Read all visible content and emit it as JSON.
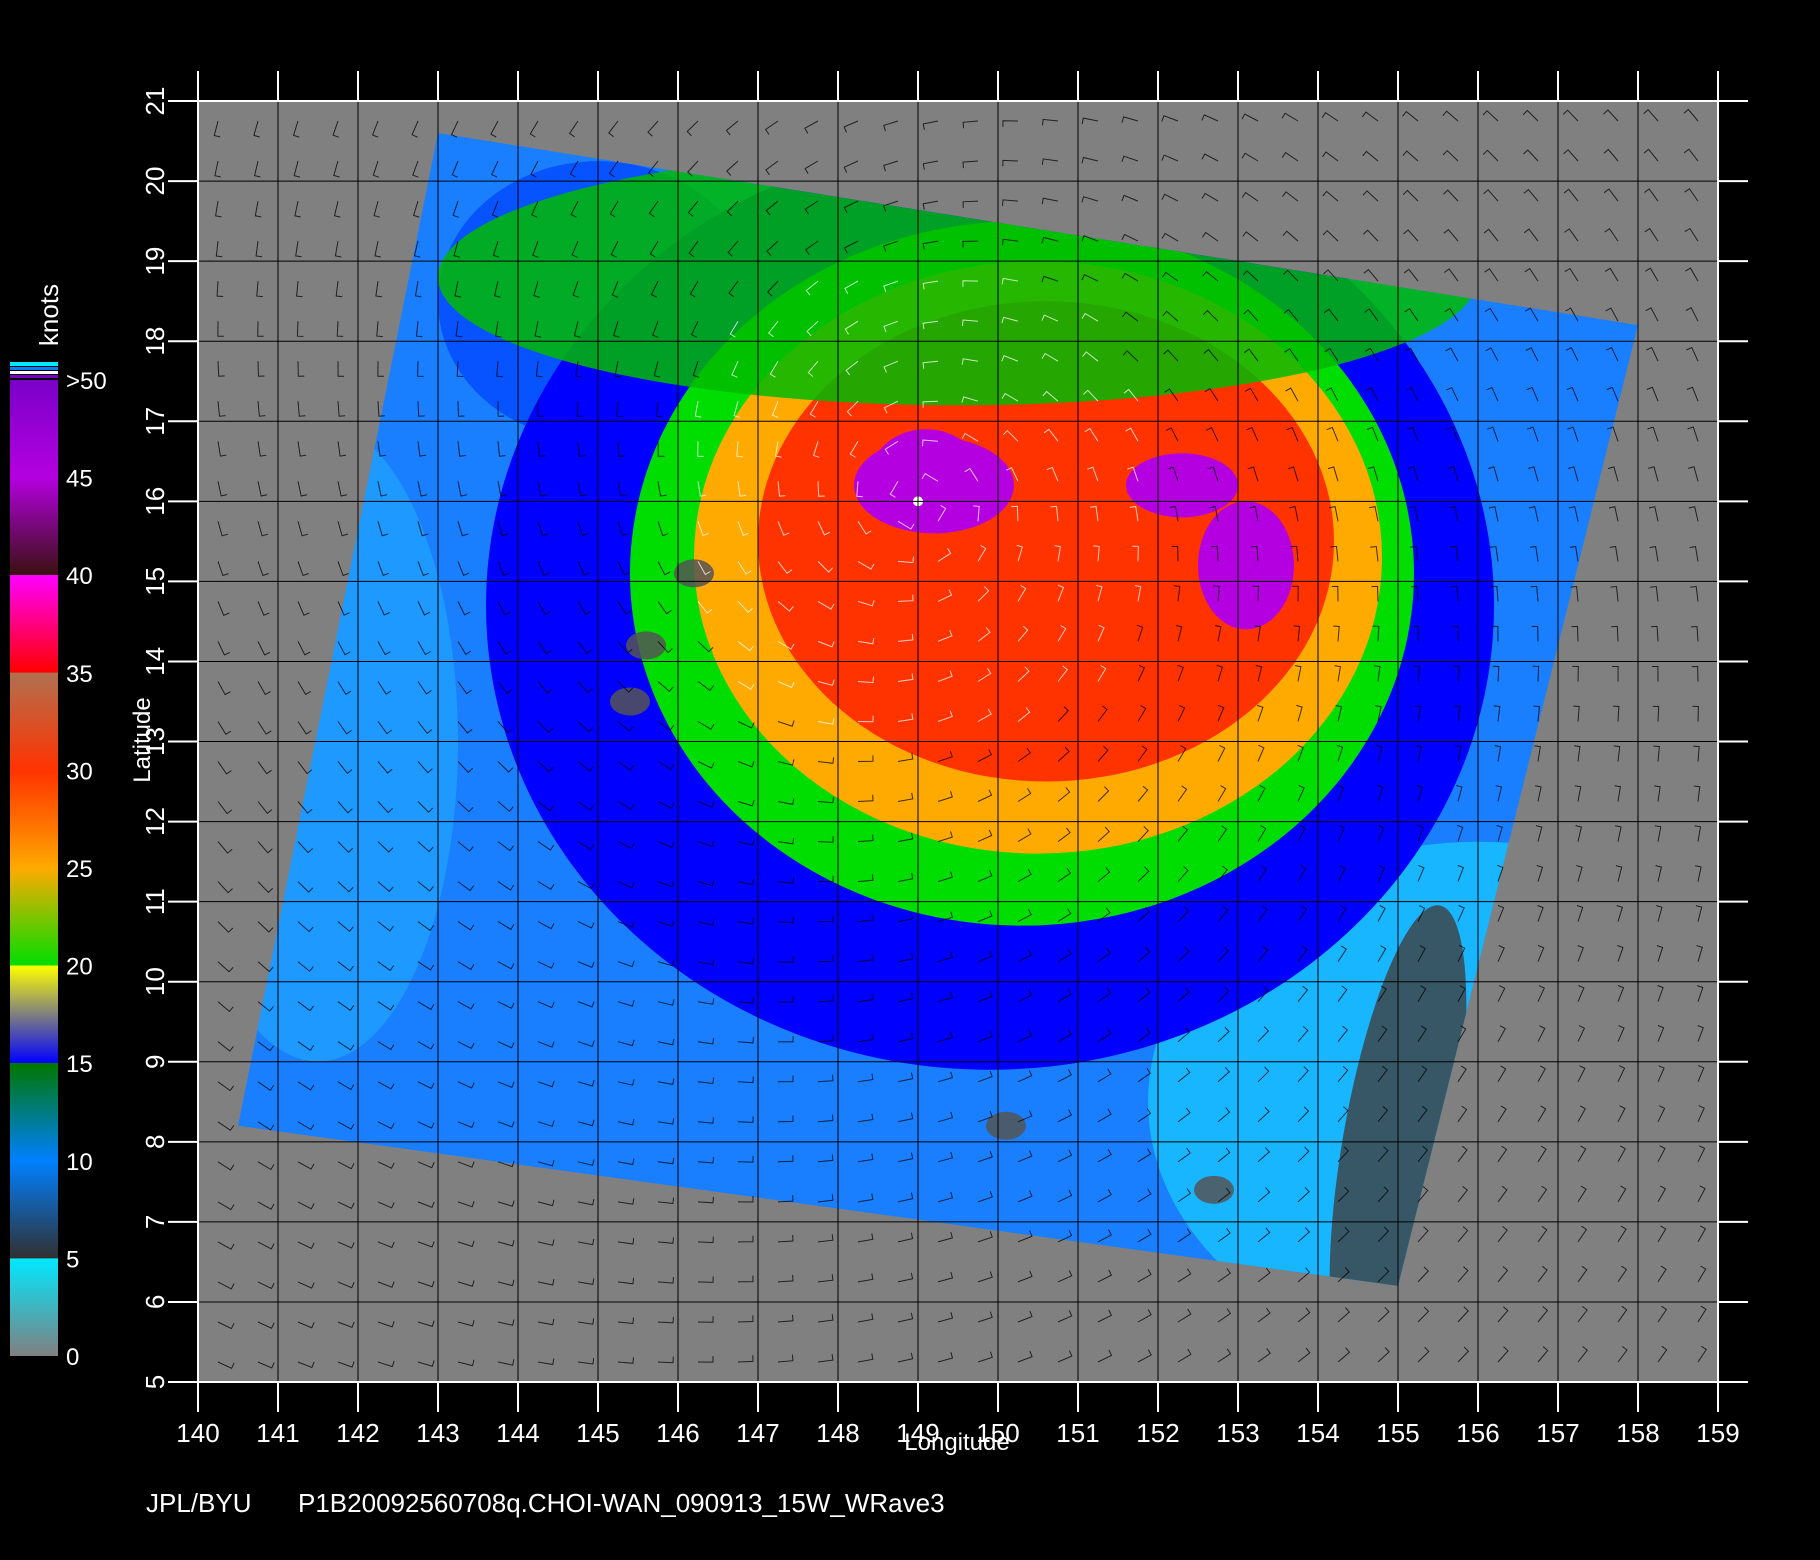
{
  "figure": {
    "credit": "JPL/BYU",
    "filename": "P1B20092560708q.CHOI-WAN_090913_15W_WRave3"
  },
  "map": {
    "x_axis_label": "Longitude",
    "y_axis_label": "Latitude",
    "lon_ticks": [
      140,
      141,
      142,
      143,
      144,
      145,
      146,
      147,
      148,
      149,
      150,
      151,
      152,
      153,
      154,
      155,
      156,
      157,
      158,
      159
    ],
    "lat_ticks": [
      5,
      6,
      7,
      8,
      9,
      10,
      11,
      12,
      13,
      14,
      15,
      16,
      17,
      18,
      19,
      20,
      21
    ],
    "lon_range": [
      140,
      159
    ],
    "lat_range": [
      5,
      21
    ],
    "grid": true,
    "background_color": "#808080",
    "storm_center": {
      "lon": 149.0,
      "lat": 16.0
    },
    "swath_corners_lonlat": [
      [
        143.0,
        20.6
      ],
      [
        158.0,
        18.2
      ],
      [
        155.0,
        6.2
      ],
      [
        140.5,
        8.2
      ]
    ]
  },
  "colorbar": {
    "title": "knots",
    "labels": [
      ">50",
      "45",
      "40",
      "35",
      "30",
      "25",
      "20",
      "15",
      "10",
      "5",
      "0"
    ],
    "stops": [
      {
        "value": 50,
        "color": "#7a00c8"
      },
      {
        "value": 45,
        "color": "#b400e0"
      },
      {
        "value": 40,
        "color": "#ff00ff"
      },
      {
        "value": 40.01,
        "color": "#3a1010"
      },
      {
        "value": 35,
        "color": "#b07050"
      },
      {
        "value": 35.01,
        "color": "#ff0000"
      },
      {
        "value": 30,
        "color": "#ff3300"
      },
      {
        "value": 27,
        "color": "#ff7700"
      },
      {
        "value": 25,
        "color": "#ffaa00"
      },
      {
        "value": 20,
        "color": "#ffff00"
      },
      {
        "value": 20.01,
        "color": "#00dd00"
      },
      {
        "value": 15,
        "color": "#007700"
      },
      {
        "value": 15.01,
        "color": "#0000ff"
      },
      {
        "value": 10,
        "color": "#0080ff"
      },
      {
        "value": 5,
        "color": "#00e8ff"
      },
      {
        "value": 5.01,
        "color": "#303030"
      },
      {
        "value": 0,
        "color": "#808080"
      }
    ]
  }
}
